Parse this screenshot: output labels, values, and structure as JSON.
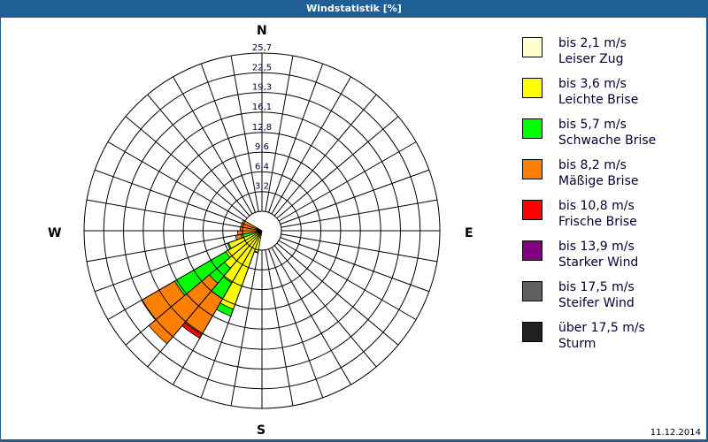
{
  "header": {
    "title": "Windstatistik [%]"
  },
  "compass": {
    "n": "N",
    "e": "E",
    "s": "S",
    "w": "W"
  },
  "footer": {
    "date": "11.12.2014"
  },
  "legend": [
    {
      "speed": "bis 2,1 m/s",
      "name": "Leiser Zug",
      "color": "#ffffcc"
    },
    {
      "speed": "bis 3,6 m/s",
      "name": "Leichte Brise",
      "color": "#ffff00"
    },
    {
      "speed": "bis 5,7 m/s",
      "name": "Schwache Brise",
      "color": "#00ff00"
    },
    {
      "speed": "bis 8,2 m/s",
      "name": "Mäßige Brise",
      "color": "#ff8000"
    },
    {
      "speed": "bis 10,8 m/s",
      "name": "Frische Brise",
      "color": "#ff0000"
    },
    {
      "speed": "bis 13,9 m/s",
      "name": "Starker Wind",
      "color": "#800080"
    },
    {
      "speed": "bis 17,5 m/s",
      "name": "Steifer Wind",
      "color": "#606060"
    },
    {
      "speed": "über 17,5 m/s",
      "name": "Sturm",
      "color": "#202020"
    }
  ],
  "chart_data": {
    "type": "wind-rose",
    "title": "Windstatistik [%]",
    "radial_ticks": [
      "3,2",
      "6,4",
      "9,6",
      "12,8",
      "16,1",
      "19,3",
      "22,5",
      "25,7"
    ],
    "radial_max": 25.7,
    "sector_width_deg": 10,
    "directions_labels": [
      "N",
      "E",
      "S",
      "W"
    ],
    "series_names": [
      "bis 2,1 m/s",
      "bis 3,6 m/s",
      "bis 5,7 m/s",
      "bis 8,2 m/s",
      "bis 10,8 m/s",
      "bis 13,9 m/s",
      "bis 17,5 m/s",
      "über 17,5 m/s"
    ],
    "sectors": [
      {
        "bearing": 195,
        "cumulative": [
          0.0,
          0.4,
          0.5,
          0.5,
          0.5,
          0.5,
          0.5,
          0.5
        ]
      },
      {
        "bearing": 205,
        "cumulative": [
          0.0,
          10.4,
          11.6,
          11.6,
          11.6,
          11.6,
          11.6,
          11.6
        ]
      },
      {
        "bearing": 215,
        "cumulative": [
          0.0,
          6.6,
          9.6,
          16.3,
          17.0,
          17.0,
          17.0,
          17.0
        ]
      },
      {
        "bearing": 225,
        "cumulative": [
          0.0,
          4.8,
          8.0,
          20.8,
          20.8,
          20.8,
          20.8,
          20.8
        ]
      },
      {
        "bearing": 235,
        "cumulative": [
          0.0,
          3.6,
          13.2,
          19.4,
          19.4,
          19.4,
          19.4,
          19.4
        ]
      },
      {
        "bearing": 245,
        "cumulative": [
          0.0,
          2.6,
          2.8,
          2.8,
          2.8,
          2.8,
          2.8,
          2.8
        ]
      },
      {
        "bearing": 255,
        "cumulative": [
          0.0,
          0.0,
          0.3,
          1.2,
          1.2,
          1.2,
          1.2,
          1.2
        ]
      },
      {
        "bearing": 265,
        "cumulative": [
          0.0,
          0.0,
          0.0,
          0.8,
          0.8,
          0.8,
          0.8,
          0.8
        ]
      },
      {
        "bearing": 275,
        "cumulative": [
          0.0,
          0.0,
          0.0,
          0.4,
          0.4,
          0.4,
          0.4,
          0.4
        ]
      },
      {
        "bearing": 285,
        "cumulative": [
          0.0,
          0.0,
          0.0,
          0.3,
          0.3,
          0.3,
          0.3,
          0.3
        ]
      },
      {
        "bearing": 295,
        "cumulative": [
          0.0,
          0.0,
          0.0,
          0.3,
          0.3,
          0.3,
          0.3,
          0.3
        ]
      }
    ]
  }
}
